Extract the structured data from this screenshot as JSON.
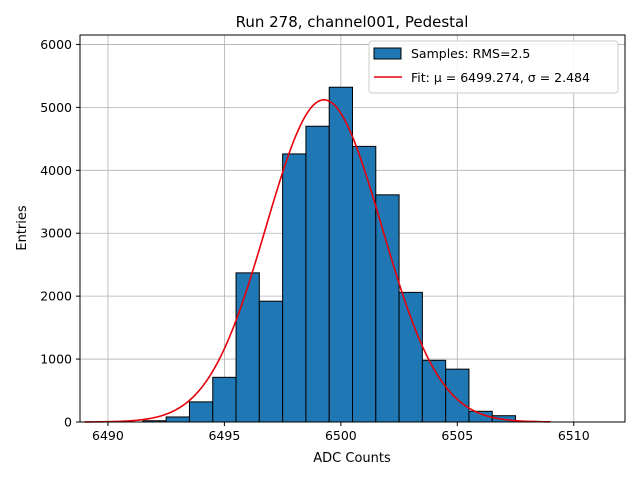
{
  "chart_data": {
    "type": "bar",
    "title": "Run 278, channel001, Pedestal",
    "xlabel": "ADC Counts",
    "ylabel": "Entries",
    "xlim": [
      6488.8,
      6512.2
    ],
    "ylim": [
      0,
      6150
    ],
    "xticks": [
      6490,
      6495,
      6500,
      6505,
      6510
    ],
    "yticks": [
      0,
      1000,
      2000,
      3000,
      4000,
      5000,
      6000
    ],
    "grid": true,
    "legend_position": "top-right",
    "bin_width": 1,
    "bins": [
      {
        "left": 6491.5,
        "count": 20
      },
      {
        "left": 6492.5,
        "count": 80
      },
      {
        "left": 6493.5,
        "count": 320
      },
      {
        "left": 6494.5,
        "count": 710
      },
      {
        "left": 6495.5,
        "count": 2370
      },
      {
        "left": 6496.5,
        "count": 1920
      },
      {
        "left": 6497.5,
        "count": 4260
      },
      {
        "left": 6498.5,
        "count": 4700
      },
      {
        "left": 6499.5,
        "count": 5320
      },
      {
        "left": 6500.5,
        "count": 4380
      },
      {
        "left": 6501.5,
        "count": 3610
      },
      {
        "left": 6502.5,
        "count": 2060
      },
      {
        "left": 6503.5,
        "count": 980
      },
      {
        "left": 6504.5,
        "count": 840
      },
      {
        "left": 6505.5,
        "count": 170
      },
      {
        "left": 6506.5,
        "count": 100
      },
      {
        "left": 6507.5,
        "count": 10
      }
    ],
    "fit": {
      "mu": 6499.274,
      "sigma": 2.484,
      "amplitude": 5120,
      "x_range": [
        6489,
        6509
      ]
    },
    "series": [
      {
        "name": "Samples: RMS=2.5",
        "type": "histogram",
        "color": "#1f77b4"
      },
      {
        "name": "Fit: μ = 6499.274, σ = 2.484",
        "type": "line",
        "color": "#e8000b"
      }
    ]
  }
}
